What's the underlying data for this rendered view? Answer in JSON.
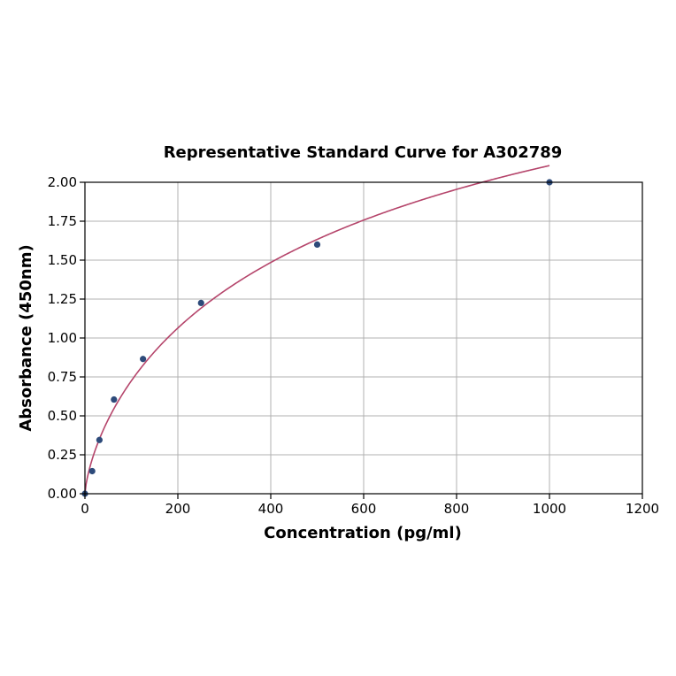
{
  "chart_data": {
    "type": "scatter",
    "title": "Representative Standard Curve for A302789",
    "xlabel": "Concentration (pg/ml)",
    "ylabel": "Absorbance (450nm)",
    "xlim": [
      0,
      1200
    ],
    "ylim": [
      0,
      2.0
    ],
    "x_ticks": [
      "0",
      "200",
      "400",
      "600",
      "800",
      "1000",
      "1200"
    ],
    "y_ticks": [
      "0.00",
      "0.25",
      "0.50",
      "0.75",
      "1.00",
      "1.25",
      "1.50",
      "1.75",
      "2.00"
    ],
    "grid": true,
    "series": [
      {
        "marker_color": "#2d4a7a",
        "x": [
          0,
          15.6,
          31.2,
          62.5,
          125,
          250,
          500,
          1000
        ],
        "y": [
          0.0,
          0.145,
          0.345,
          0.605,
          0.865,
          1.225,
          1.6,
          2.0
        ]
      }
    ],
    "fit_curve": {
      "color": "#b5456b",
      "type": "4PL",
      "a": 0,
      "b": 0.72,
      "c": 750,
      "d": 3.82
    }
  }
}
